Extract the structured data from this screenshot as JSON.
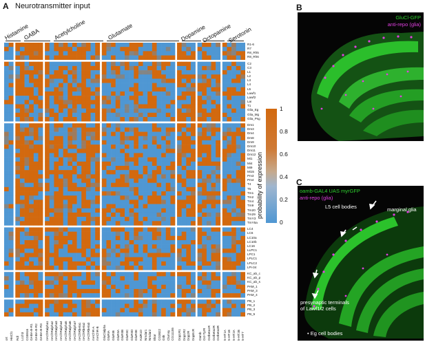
{
  "panel_a": {
    "letter": "A",
    "title": "Neurotransmitter input",
    "groups": [
      "Histamine",
      "GABA",
      "Acetylcholine",
      "Glutamate",
      "Dopamine",
      "Octopamine",
      "Serotonin"
    ],
    "row_labels": [
      "R1-6",
      "R7",
      "R8_Rh5",
      "R8_Rh6",
      "C2",
      "C3",
      "L1",
      "L2",
      "L3",
      "L4",
      "L5",
      "Lawf1",
      "Lawf2",
      "Lai",
      "T1",
      "Glia_Eg",
      "Glia_Mg",
      "Glia_Psg",
      "Dm1",
      "Dm3",
      "Dm4",
      "Dm8",
      "Dm9",
      "Dm10",
      "Dm11",
      "Dm12",
      "Mi1",
      "Mi4",
      "Mi9",
      "Mi15",
      "Pm3",
      "Pm4",
      "T4",
      "T5",
      "Tm1",
      "Tm2",
      "Tm4",
      "Tm9",
      "Tm20",
      "Tm29",
      "TmY3",
      "TmY5a",
      "LC4",
      "LC6",
      "LC10a",
      "LC10b",
      "LC16",
      "LLPC1",
      "LPC1",
      "LPLC1",
      "LPLC2",
      "LPi-34",
      "KC_ab_c",
      "KC_ab_p",
      "KC_ab_s",
      "PAM_1",
      "PAM_3",
      "PAM_4",
      "PB_1",
      "PB_2",
      "PB_3",
      "PB_5"
    ],
    "column_labels": [
      "ort",
      "HisCl1",
      "Rdl",
      "Lcch3",
      "CG8916",
      "GABA-B-R1",
      "GABA-B-R2",
      "GABA-B-R3",
      "nAChRalpha1",
      "nAChRalpha2",
      "nAChRalpha3",
      "nAChRalpha4",
      "nAChRalpha5",
      "nAChRalpha6",
      "nAChRalpha7",
      "nAChRbeta1",
      "nAChRbeta2",
      "nAChRbeta3",
      "mAChR-A",
      "mAChR-B",
      "GluClalpha",
      "GluRIA",
      "GluRIB",
      "GluRIIA",
      "GluRIIB",
      "GluRIIC",
      "GluRIID",
      "GluRIIE",
      "KaiR1D",
      "Nmdar1",
      "Nmdar2",
      "Ekar",
      "CG3822",
      "Grik",
      "Clumsy",
      "CG11155",
      "Dop1R1",
      "Dop1R2",
      "Dop2R",
      "DopEcR",
      "Oamb",
      "Oct-TyrR",
      "Octbeta1R",
      "Octbeta2R",
      "Octbeta3R",
      "5-HT1A",
      "5-HT1B",
      "5-HT2A",
      "5-HT2B",
      "5-HT7"
    ]
  },
  "colorbar": {
    "title": "probability of expression",
    "ticks": [
      "1",
      "0.8",
      "0.6",
      "0.4",
      "0.2",
      "0"
    ],
    "color_low": "#4f97d3",
    "color_high": "#d2690f"
  },
  "panel_b": {
    "letter": "B",
    "label_green": "GluCl-GFP",
    "label_magenta": "anti-repo (glia)"
  },
  "panel_c": {
    "letter": "C",
    "label_green": "oamb-GAL4 UAS myrGFP",
    "label_magenta": "anti-repo (glia)",
    "annotation_l5": "L5 cell bodies",
    "annotation_marginal": "marginal glia",
    "annotation_presynaptic": "presynaptic terminals of Lawf1/2 cells",
    "annotation_eg": "Eg cell bodies"
  },
  "colors": {
    "green_signal": "#2fd12f",
    "magenta_signal": "#e040e0",
    "separator": "#ffffff"
  }
}
